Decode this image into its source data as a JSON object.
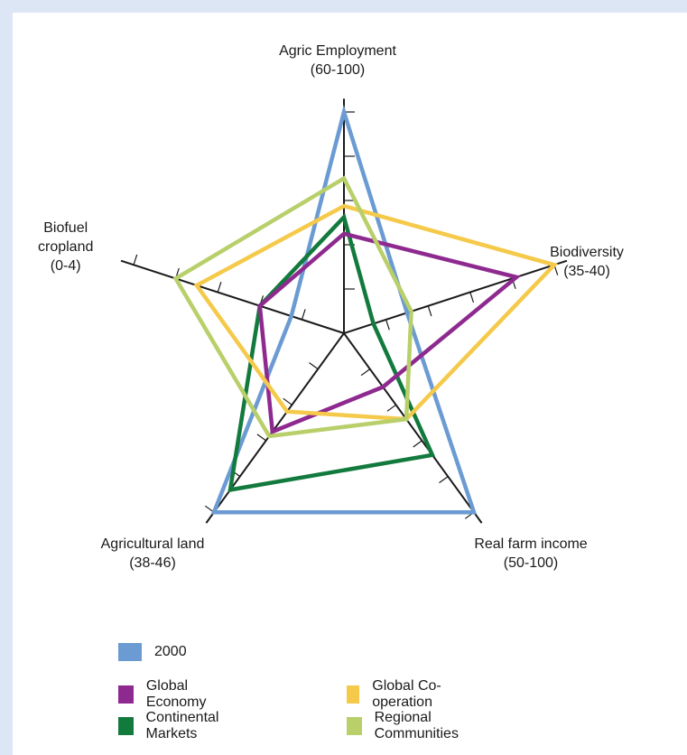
{
  "chart_data": {
    "type": "radar",
    "axes": [
      {
        "name": "Agric Employment",
        "range_label": "(60-100)",
        "min": 60,
        "max": 100
      },
      {
        "name": "Biodiversity",
        "range_label": "(35-40)",
        "min": 35,
        "max": 40
      },
      {
        "name": "Real farm income",
        "range_label": "(50-100)",
        "min": 50,
        "max": 100
      },
      {
        "name": "Agricultural land",
        "range_label": "(38-46)",
        "min": 38,
        "max": 46
      },
      {
        "name": "Biofuel cropland",
        "range_label": "(0-4)",
        "min": 0,
        "max": 4
      }
    ],
    "axis_label_lines": [
      [
        "Agric Employment",
        "(60-100)"
      ],
      [
        "Biodiversity",
        "(35-40)"
      ],
      [
        "Real farm income",
        "(50-100)"
      ],
      [
        "Agricultural land",
        "(38-46)"
      ],
      [
        "Biofuel",
        "cropland",
        "(0-4)"
      ]
    ],
    "series": [
      {
        "name": "2000",
        "color": "#6b9bd2",
        "values": [
          100,
          36.5,
          100,
          46,
          1
        ]
      },
      {
        "name": "Global Economy",
        "color": "#8e2a8f",
        "values": [
          78,
          39.1,
          65,
          42.4,
          1.6
        ]
      },
      {
        "name": "Global Co-operation",
        "color": "#f5c94a",
        "values": [
          83,
          40,
          74,
          41.5,
          2.8
        ]
      },
      {
        "name": "Continental Markets",
        "color": "#137a3e",
        "values": [
          81,
          35.7,
          84,
          45,
          1.6
        ]
      },
      {
        "name": "Regional Communities",
        "color": "#b8cf6a",
        "values": [
          88,
          36.6,
          74,
          42.6,
          3.2
        ]
      }
    ],
    "legend": [
      [
        "2000"
      ],
      [
        "Global Economy",
        "Global Co-operation"
      ],
      [
        "Continental Markets",
        "Regional Communities"
      ]
    ],
    "legend_placement": "bottom-left",
    "grid": false
  }
}
